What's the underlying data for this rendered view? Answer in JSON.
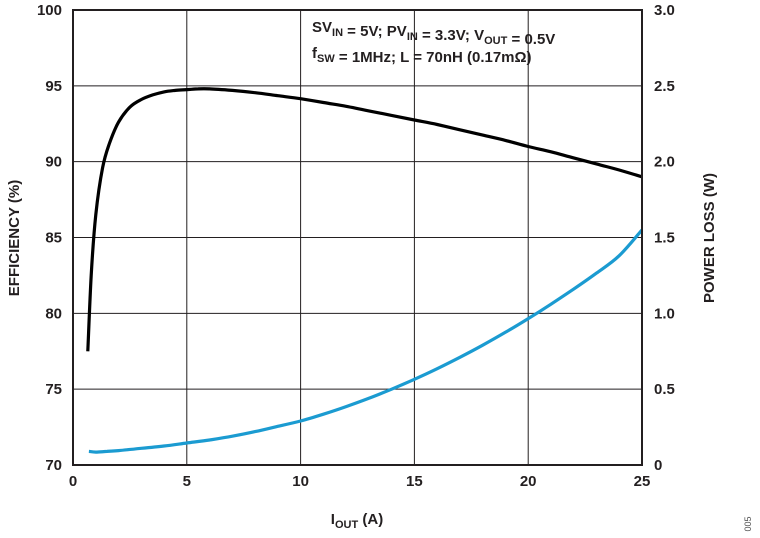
{
  "chart_data": {
    "type": "line",
    "title": "",
    "xlabel": {
      "main": "I",
      "sub": "OUT",
      "rest": " (A)"
    },
    "ylabel_left": "EFFICIENCY (%)",
    "ylabel_right": "POWER LOSS (W)",
    "xlim": [
      0,
      25
    ],
    "ylim_left": [
      70,
      100
    ],
    "ylim_right": [
      0,
      3.0
    ],
    "x_ticks": [
      "0",
      "5",
      "10",
      "15",
      "20",
      "25"
    ],
    "y_left_ticks": [
      "70",
      "75",
      "80",
      "85",
      "90",
      "95",
      "100"
    ],
    "y_right_ticks": [
      "0",
      "0.5",
      "1.0",
      "1.5",
      "2.0",
      "2.5",
      "3.0"
    ],
    "grid": true,
    "annotation": {
      "line1": [
        {
          "text": "SV"
        },
        {
          "text": "IN",
          "sub": true
        },
        {
          "text": " = 5V; PV"
        },
        {
          "text": "IN",
          "sub": true
        },
        {
          "text": " = 3.3V; V"
        },
        {
          "text": "OUT",
          "sub": true
        },
        {
          "text": " = 0.5V"
        }
      ],
      "line2": [
        {
          "text": "f"
        },
        {
          "text": "SW",
          "sub": true
        },
        {
          "text": " = 1MHz; L = 70nH (0.17mΩ)"
        }
      ]
    },
    "series": [
      {
        "axis": "left",
        "color": "#000000",
        "x": [
          0.65,
          0.8,
          1.0,
          1.3,
          1.6,
          2.0,
          2.5,
          3.0,
          3.5,
          4.0,
          4.5,
          5.0,
          5.5,
          6.0,
          7.0,
          8.0,
          9.0,
          10.0,
          11.0,
          12.0,
          13.0,
          14.0,
          15.0,
          16.0,
          17.0,
          18.0,
          19.0,
          20.0,
          21.0,
          22.0,
          23.0,
          24.0,
          25.0
        ],
        "y": [
          77.5,
          82.5,
          86.5,
          89.6,
          91.2,
          92.6,
          93.6,
          94.1,
          94.4,
          94.6,
          94.7,
          94.75,
          94.8,
          94.8,
          94.7,
          94.55,
          94.35,
          94.15,
          93.9,
          93.65,
          93.35,
          93.05,
          92.75,
          92.45,
          92.1,
          91.75,
          91.4,
          91.0,
          90.65,
          90.25,
          89.85,
          89.45,
          89.0
        ]
      },
      {
        "axis": "right",
        "color": "#1b9bd1",
        "x": [
          0.7,
          1.0,
          1.5,
          2.0,
          3.0,
          4.0,
          5.0,
          6.0,
          7.0,
          8.0,
          9.0,
          10.0,
          11.0,
          12.0,
          13.0,
          14.0,
          15.0,
          16.0,
          17.0,
          18.0,
          19.0,
          20.0,
          21.0,
          22.0,
          23.0,
          24.0,
          25.0
        ],
        "y": [
          0.09,
          0.085,
          0.09,
          0.095,
          0.11,
          0.125,
          0.145,
          0.165,
          0.19,
          0.22,
          0.255,
          0.29,
          0.335,
          0.385,
          0.44,
          0.5,
          0.565,
          0.635,
          0.71,
          0.79,
          0.875,
          0.965,
          1.06,
          1.16,
          1.265,
          1.38,
          1.55
        ]
      }
    ]
  },
  "figure_id": "005"
}
